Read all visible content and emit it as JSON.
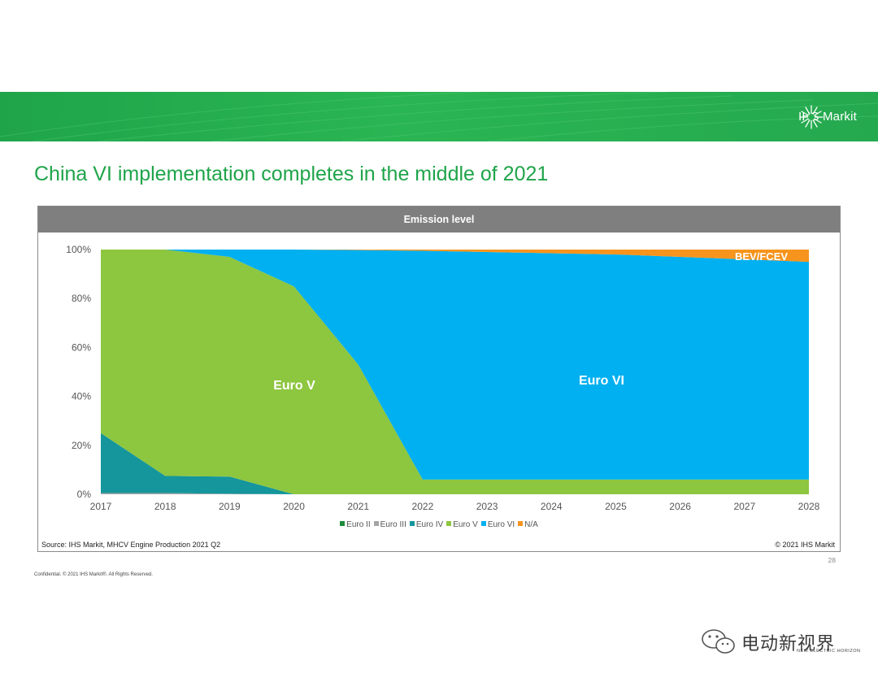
{
  "header": {
    "logo_text": "IHS Markit"
  },
  "page": {
    "title": "China VI implementation completes in the middle of 2021",
    "page_number": "28",
    "confidential": "Confidential. © 2021 IHS Markit®. All Rights Reserved."
  },
  "chart_panel": {
    "header": "Emission level",
    "source": "Source: IHS Markit, MHCV Engine Production 2021 Q2",
    "copyright": "© 2021 IHS Markit"
  },
  "chart_data": {
    "type": "area",
    "stacked": true,
    "title": "Emission level",
    "x": [
      "2017",
      "2018",
      "2019",
      "2020",
      "2021",
      "2022",
      "2023",
      "2024",
      "2025",
      "2026",
      "2027",
      "2028"
    ],
    "ylim": [
      0,
      100
    ],
    "y_ticks": [
      "0%",
      "20%",
      "40%",
      "60%",
      "80%",
      "100%"
    ],
    "grid": false,
    "legend_position": "bottom",
    "series": [
      {
        "name": "Euro II",
        "color": "#1e8c3a",
        "values": [
          0,
          0,
          0,
          0,
          0,
          0,
          0,
          0,
          0,
          0,
          0,
          0
        ]
      },
      {
        "name": "Euro III",
        "color": "#a5a5a5",
        "values": [
          0.5,
          0.5,
          0.2,
          0,
          0,
          0,
          0,
          0,
          0,
          0,
          0,
          0
        ]
      },
      {
        "name": "Euro IV",
        "color": "#14969c",
        "values": [
          24.5,
          7,
          7,
          0,
          0,
          0,
          0,
          0,
          0,
          0,
          0,
          0
        ]
      },
      {
        "name": "Euro V",
        "color": "#8dc63f",
        "values": [
          75,
          92.5,
          89.8,
          85,
          53,
          6,
          6,
          6,
          6,
          6,
          6,
          6
        ]
      },
      {
        "name": "Euro VI",
        "color": "#00b0f0",
        "values": [
          0,
          0,
          3,
          15,
          46.8,
          93.5,
          93,
          92.5,
          92,
          91,
          90,
          89
        ]
      },
      {
        "name": "N/A",
        "color": "#f7941d",
        "values": [
          0,
          0,
          0,
          0,
          0.2,
          0.5,
          1,
          1.5,
          2,
          3,
          4,
          5
        ]
      }
    ],
    "annotations": [
      {
        "text": "Euro V",
        "color": "#ffffff"
      },
      {
        "text": "Euro VI",
        "color": "#ffffff"
      },
      {
        "text": "BEV/FCEV",
        "color": "#ffffff"
      }
    ]
  },
  "watermark": {
    "text": "电动新视界",
    "subtext": "NEW ELECTRIC HORIZON"
  }
}
